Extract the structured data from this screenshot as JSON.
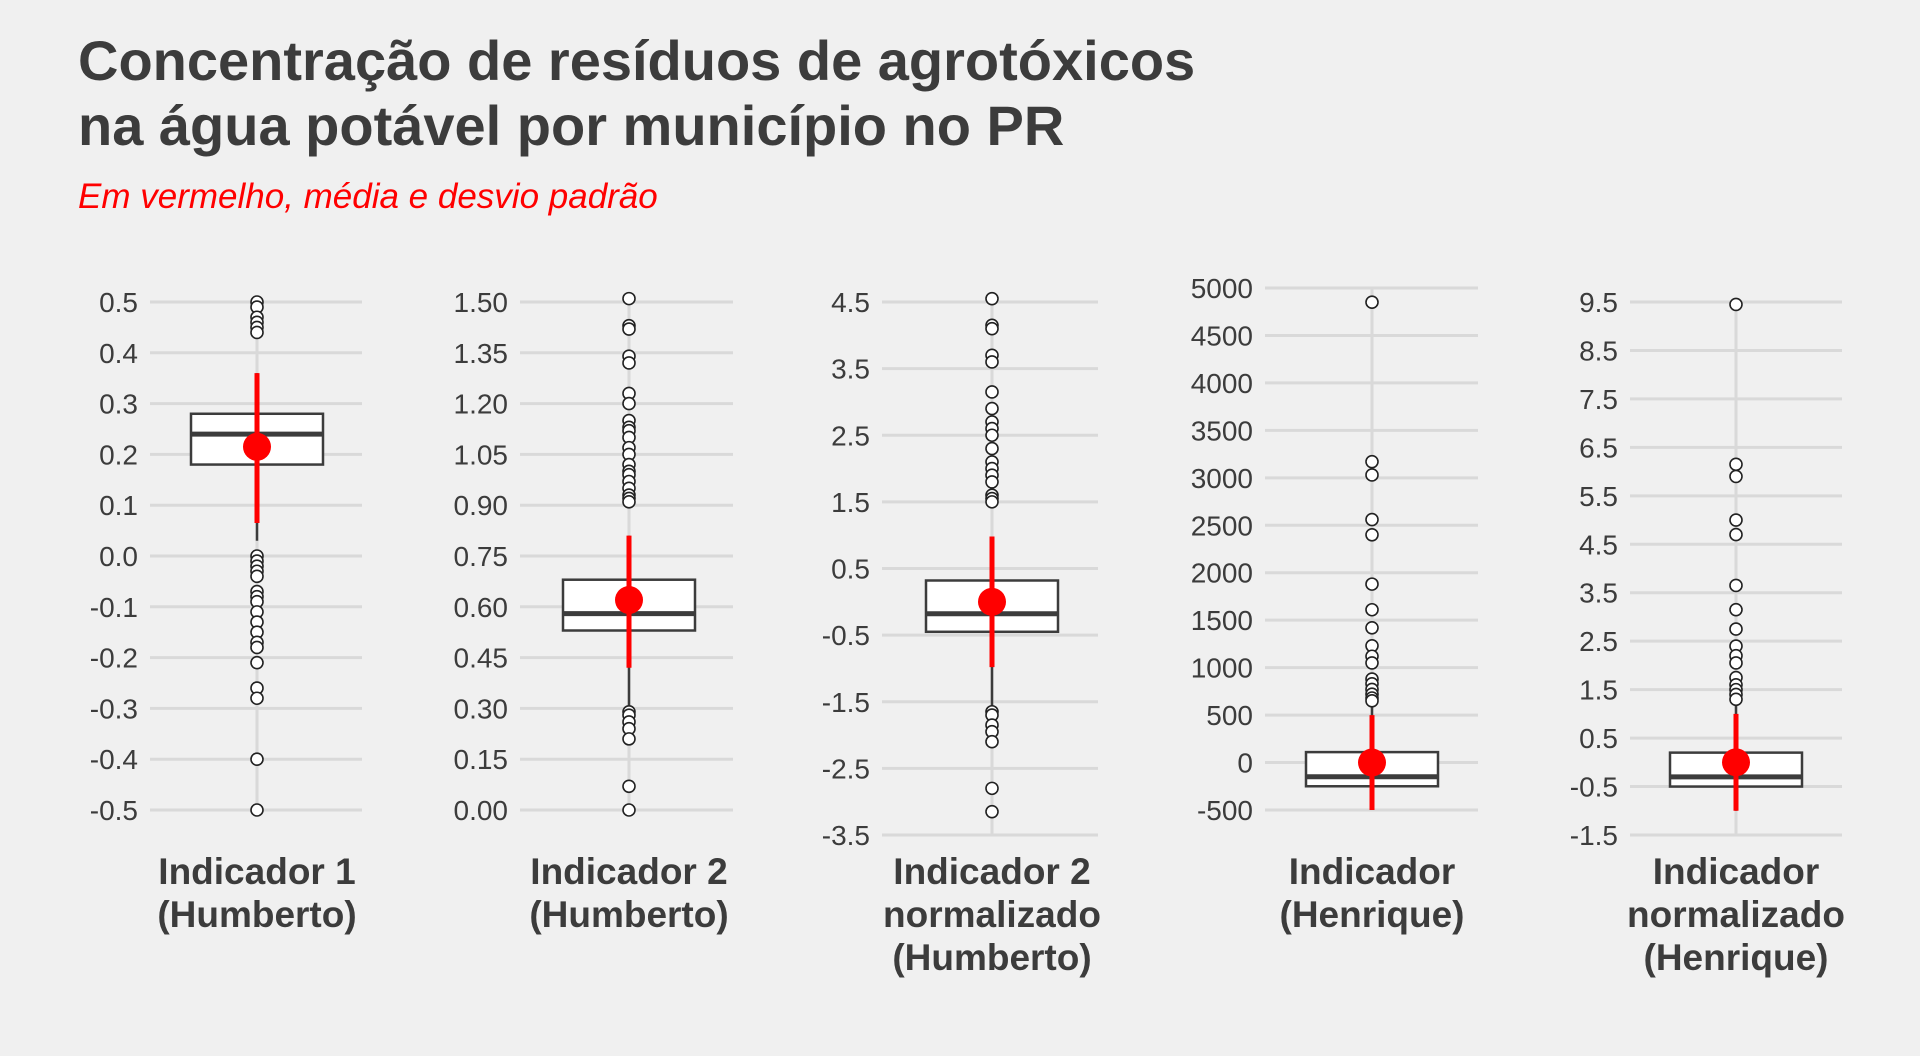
{
  "chart_data": {
    "type": "boxplot",
    "title_lines": [
      "Concentração de resíduos de agrotóxicos",
      "na água potável por município no PR"
    ],
    "subtitle": "Em vermelho, média e desvio padrão",
    "colors": {
      "background": "#f0f0f0",
      "grid": "#d9d9d9",
      "box": "#3c3c3c",
      "mean": "#ff0000",
      "text": "#3c3c3c"
    },
    "panels": [
      {
        "name_lines": [
          "Indicador 1",
          "(Humberto)"
        ],
        "ylim": [
          -0.52,
          0.52
        ],
        "ticks": [
          0.5,
          0.4,
          0.3,
          0.2,
          0.1,
          0.0,
          -0.1,
          -0.2,
          -0.3,
          -0.4,
          -0.5
        ],
        "tick_labels": [
          "0.5",
          "0.4",
          "0.3",
          "0.2",
          "0.1",
          "0.0",
          "-0.1",
          "-0.2",
          "-0.3",
          "-0.4",
          "-0.5"
        ],
        "q1": 0.18,
        "median": 0.24,
        "q3": 0.28,
        "whisker_low": 0.03,
        "whisker_high": 0.36,
        "mean": 0.215,
        "sd_low": 0.065,
        "sd_high": 0.36,
        "outliers": [
          0.5,
          0.49,
          0.47,
          0.46,
          0.45,
          0.44,
          0.0,
          -0.01,
          -0.02,
          -0.03,
          -0.04,
          -0.07,
          -0.08,
          -0.09,
          -0.11,
          -0.13,
          -0.15,
          -0.17,
          -0.18,
          -0.21,
          -0.26,
          -0.28,
          -0.4,
          -0.5
        ]
      },
      {
        "name_lines": [
          "Indicador 2",
          "(Humberto)"
        ],
        "ylim": [
          -0.02,
          1.52
        ],
        "ticks": [
          1.5,
          1.35,
          1.2,
          1.05,
          0.9,
          0.75,
          0.6,
          0.45,
          0.3,
          0.15,
          0.0
        ],
        "tick_labels": [
          "1.50",
          "1.35",
          "1.20",
          "1.05",
          "0.90",
          "0.75",
          "0.60",
          "0.45",
          "0.30",
          "0.15",
          "0.00"
        ],
        "q1": 0.53,
        "median": 0.58,
        "q3": 0.68,
        "whisker_low": 0.31,
        "whisker_high": 0.81,
        "mean": 0.62,
        "sd_low": 0.42,
        "sd_high": 0.81,
        "outliers": [
          1.51,
          1.43,
          1.42,
          1.34,
          1.32,
          1.23,
          1.2,
          1.15,
          1.13,
          1.12,
          1.1,
          1.07,
          1.05,
          1.02,
          1.0,
          0.99,
          0.97,
          0.95,
          0.93,
          0.92,
          0.91,
          0.29,
          0.28,
          0.26,
          0.24,
          0.21,
          0.07,
          0.0
        ]
      },
      {
        "name_lines": [
          "Indicador 2",
          "normalizado",
          "(Humberto)"
        ],
        "ylim": [
          -3.5,
          4.6
        ],
        "ticks": [
          4.5,
          3.5,
          2.5,
          1.5,
          0.5,
          -0.5,
          -1.5,
          -2.5,
          -3.5
        ],
        "tick_labels": [
          "4.5",
          "3.5",
          "2.5",
          "1.5",
          "0.5",
          "-0.5",
          "-1.5",
          "-2.5",
          "-3.5"
        ],
        "q1": -0.45,
        "median": -0.18,
        "q3": 0.32,
        "whisker_low": -1.6,
        "whisker_high": 0.98,
        "mean": 0.0,
        "sd_low": -0.98,
        "sd_high": 0.98,
        "outliers": [
          4.55,
          4.15,
          4.1,
          3.7,
          3.6,
          3.15,
          2.9,
          2.7,
          2.6,
          2.5,
          2.3,
          2.1,
          2.0,
          1.9,
          1.8,
          1.6,
          1.55,
          1.5,
          -1.65,
          -1.7,
          -1.85,
          -1.95,
          -2.1,
          -2.8,
          -3.15
        ]
      },
      {
        "name_lines": [
          "Indicador",
          "(Henrique)"
        ],
        "ylim": [
          -500,
          5050
        ],
        "ticks": [
          5000,
          4500,
          4000,
          3500,
          3000,
          2500,
          2000,
          1500,
          1000,
          500,
          0,
          -500
        ],
        "tick_labels": [
          "5000",
          "4500",
          "4000",
          "3500",
          "3000",
          "2500",
          "2000",
          "1500",
          "1000",
          "500",
          "0",
          "-500"
        ],
        "q1": -250,
        "median": -150,
        "q3": 110,
        "whisker_low": -500,
        "whisker_high": 600,
        "mean": 0,
        "sd_low": -500,
        "sd_high": 500,
        "outliers": [
          4850,
          3170,
          3030,
          2560,
          2400,
          1880,
          1610,
          1420,
          1230,
          1120,
          1050,
          880,
          830,
          770,
          720,
          680,
          650
        ]
      },
      {
        "name_lines": [
          "Indicador",
          "normalizado",
          "(Henrique)"
        ],
        "ylim": [
          -1.5,
          9.6
        ],
        "ticks": [
          9.5,
          8.5,
          7.5,
          6.5,
          5.5,
          4.5,
          3.5,
          2.5,
          1.5,
          0.5,
          -0.5,
          -1.5
        ],
        "tick_labels": [
          "9.5",
          "8.5",
          "7.5",
          "6.5",
          "5.5",
          "4.5",
          "3.5",
          "2.5",
          "1.5",
          "0.5",
          "-0.5",
          "-1.5"
        ],
        "q1": -0.5,
        "median": -0.3,
        "q3": 0.2,
        "whisker_low": -1.0,
        "whisker_high": 1.2,
        "mean": 0.0,
        "sd_low": -1.0,
        "sd_high": 1.0,
        "outliers": [
          9.45,
          6.15,
          5.9,
          5.0,
          4.7,
          3.65,
          3.15,
          2.75,
          2.4,
          2.2,
          2.05,
          1.75,
          1.6,
          1.5,
          1.4,
          1.3
        ]
      }
    ]
  }
}
